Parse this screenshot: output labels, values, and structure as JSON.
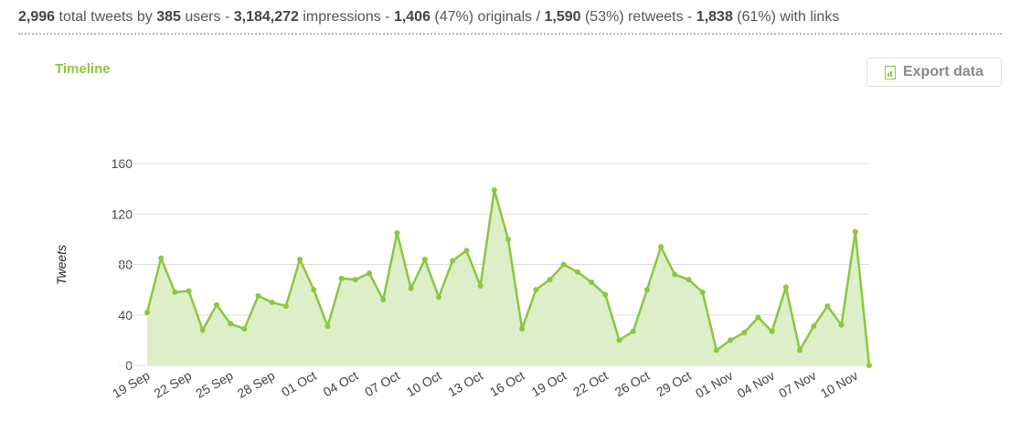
{
  "header": {
    "stats": [
      {
        "bold": "2,996",
        "text": " total tweets by "
      },
      {
        "bold": "385",
        "text": " users - "
      },
      {
        "bold": "3,184,272",
        "text": " impressions - "
      },
      {
        "bold": "1,406",
        "text": " (47%) originals / "
      },
      {
        "bold": "1,590",
        "text": " (53%) retweets - "
      },
      {
        "bold": "1,838",
        "text": " (61%) with links"
      }
    ]
  },
  "export_button": "Export data",
  "chart_data": {
    "type": "area",
    "title": "Timeline",
    "y_label": "Tweets",
    "categories": [
      "19 Sep",
      null,
      null,
      "22 Sep",
      null,
      null,
      "25 Sep",
      null,
      null,
      "28 Sep",
      null,
      null,
      "01 Oct",
      null,
      null,
      "04 Oct",
      null,
      null,
      "07 Oct",
      null,
      null,
      "10 Oct",
      null,
      null,
      "13 Oct",
      null,
      null,
      "16 Oct",
      null,
      null,
      "19 Oct",
      null,
      null,
      "22 Oct",
      null,
      null,
      "26 Oct",
      null,
      null,
      "29 Oct",
      null,
      null,
      "01 Nov",
      null,
      null,
      "04 Nov",
      null,
      null,
      "07 Nov",
      null,
      null,
      "10 Nov",
      null
    ],
    "values": [
      42,
      85,
      58,
      59,
      28,
      48,
      33,
      29,
      55,
      50,
      47,
      84,
      60,
      31,
      69,
      68,
      73,
      52,
      105,
      61,
      84,
      54,
      83,
      91,
      63,
      139,
      100,
      29,
      60,
      68,
      80,
      74,
      66,
      56,
      20,
      27,
      60,
      94,
      72,
      68,
      58,
      12,
      20,
      26,
      38,
      27,
      62,
      12,
      31,
      47,
      32,
      106,
      0
    ],
    "color": "#8dc63f",
    "fill": "#dcefc9",
    "ylim": [
      0,
      160
    ],
    "yticks": [
      0,
      40,
      80,
      120,
      160
    ],
    "grid": true
  }
}
